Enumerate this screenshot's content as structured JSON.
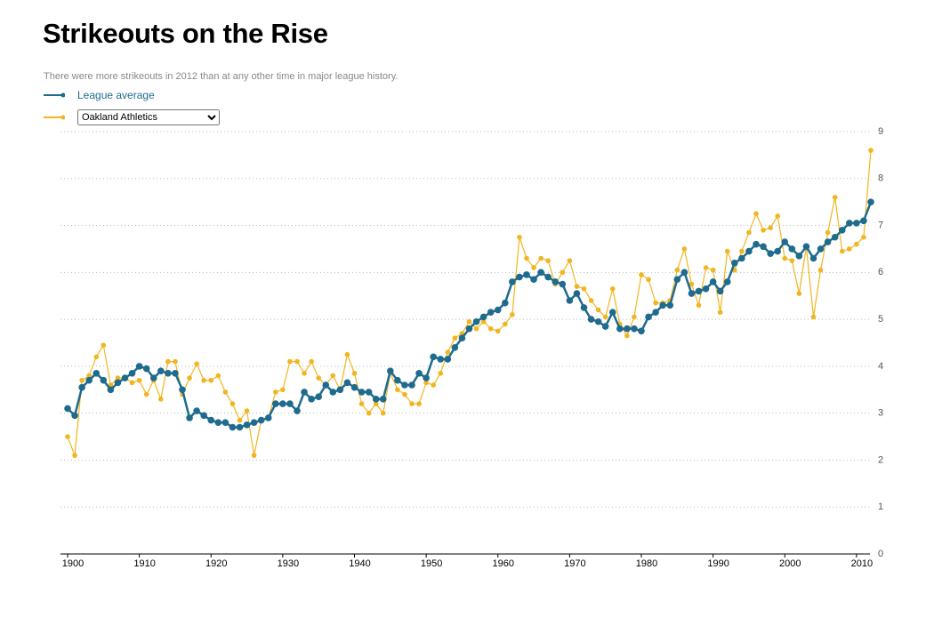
{
  "chart_data": {
    "type": "line",
    "title": "Strikeouts on the Rise",
    "subtitle": "There were more strikeouts in 2012 than at any other time in major league history.",
    "x": [
      1900,
      1901,
      1902,
      1903,
      1904,
      1905,
      1906,
      1907,
      1908,
      1909,
      1910,
      1911,
      1912,
      1913,
      1914,
      1915,
      1916,
      1917,
      1918,
      1919,
      1920,
      1921,
      1922,
      1923,
      1924,
      1925,
      1926,
      1927,
      1928,
      1929,
      1930,
      1931,
      1932,
      1933,
      1934,
      1935,
      1936,
      1937,
      1938,
      1939,
      1940,
      1941,
      1942,
      1943,
      1944,
      1945,
      1946,
      1947,
      1948,
      1949,
      1950,
      1951,
      1952,
      1953,
      1954,
      1955,
      1956,
      1957,
      1958,
      1959,
      1960,
      1961,
      1962,
      1963,
      1964,
      1965,
      1966,
      1967,
      1968,
      1969,
      1970,
      1971,
      1972,
      1973,
      1974,
      1975,
      1976,
      1977,
      1978,
      1979,
      1980,
      1981,
      1982,
      1983,
      1984,
      1985,
      1986,
      1987,
      1988,
      1989,
      1990,
      1991,
      1992,
      1993,
      1994,
      1995,
      1996,
      1997,
      1998,
      1999,
      2000,
      2001,
      2002,
      2003,
      2004,
      2005,
      2006,
      2007,
      2008,
      2009,
      2010,
      2011,
      2012
    ],
    "series": [
      {
        "name": "League average",
        "color": "#1f6b8e",
        "values": [
          3.1,
          2.95,
          3.55,
          3.7,
          3.85,
          3.7,
          3.5,
          3.65,
          3.75,
          3.85,
          4.0,
          3.95,
          3.75,
          3.9,
          3.85,
          3.85,
          3.5,
          2.9,
          3.05,
          2.95,
          2.85,
          2.8,
          2.8,
          2.7,
          2.7,
          2.75,
          2.8,
          2.85,
          2.9,
          3.2,
          3.2,
          3.2,
          3.05,
          3.45,
          3.3,
          3.35,
          3.6,
          3.45,
          3.5,
          3.65,
          3.55,
          3.45,
          3.45,
          3.3,
          3.3,
          3.9,
          3.7,
          3.6,
          3.6,
          3.85,
          3.75,
          4.2,
          4.15,
          4.15,
          4.4,
          4.6,
          4.8,
          4.95,
          5.05,
          5.15,
          5.2,
          5.35,
          5.8,
          5.9,
          5.95,
          5.85,
          6.0,
          5.9,
          5.8,
          5.75,
          5.4,
          5.55,
          5.25,
          5.0,
          4.95,
          4.85,
          5.15,
          4.8,
          4.8,
          4.8,
          4.75,
          5.05,
          5.15,
          5.3,
          5.3,
          5.85,
          6.0,
          5.55,
          5.6,
          5.65,
          5.8,
          5.6,
          5.8,
          6.2,
          6.3,
          6.45,
          6.6,
          6.55,
          6.4,
          6.45,
          6.65,
          6.5,
          6.35,
          6.55,
          6.3,
          6.5,
          6.65,
          6.75,
          6.9,
          7.05,
          7.05,
          7.1,
          7.5
        ]
      },
      {
        "name": "Oakland Athletics",
        "color": "#f1b521",
        "values": [
          2.5,
          2.1,
          3.7,
          3.8,
          4.2,
          4.45,
          3.6,
          3.75,
          3.75,
          3.65,
          3.7,
          3.4,
          3.7,
          3.3,
          4.1,
          4.1,
          3.4,
          3.75,
          4.05,
          3.7,
          3.7,
          3.8,
          3.45,
          3.2,
          2.85,
          3.05,
          2.1,
          2.85,
          2.9,
          3.45,
          3.5,
          4.1,
          4.1,
          3.85,
          4.1,
          3.75,
          3.6,
          3.8,
          3.5,
          4.25,
          3.85,
          3.2,
          3.0,
          3.2,
          3.0,
          3.85,
          3.5,
          3.4,
          3.2,
          3.2,
          3.65,
          3.6,
          3.85,
          4.3,
          4.6,
          4.7,
          4.95,
          4.8,
          4.95,
          4.8,
          4.75,
          4.9,
          5.1,
          6.75,
          6.3,
          6.1,
          6.3,
          6.25,
          5.75,
          6.0,
          6.25,
          5.7,
          5.65,
          5.4,
          5.2,
          5.05,
          5.65,
          4.9,
          4.65,
          5.05,
          5.95,
          5.85,
          5.35,
          5.35,
          5.4,
          6.05,
          6.5,
          5.75,
          5.3,
          6.1,
          6.05,
          5.15,
          6.45,
          6.05,
          6.45,
          6.85,
          7.25,
          6.9,
          6.95,
          7.2,
          6.3,
          6.25,
          5.55,
          6.55,
          5.05,
          6.05,
          6.85,
          7.6,
          6.45,
          6.5,
          6.6,
          6.75,
          8.6
        ]
      }
    ],
    "xlim": [
      1900,
      2012
    ],
    "xticks": [
      1900,
      1910,
      1920,
      1930,
      1940,
      1950,
      1960,
      1970,
      1980,
      1990,
      2000,
      2010
    ],
    "ylim": [
      0,
      9
    ],
    "yticks": [
      0,
      1,
      2,
      3,
      4,
      5,
      6,
      7,
      8,
      9
    ],
    "grid": true
  }
}
